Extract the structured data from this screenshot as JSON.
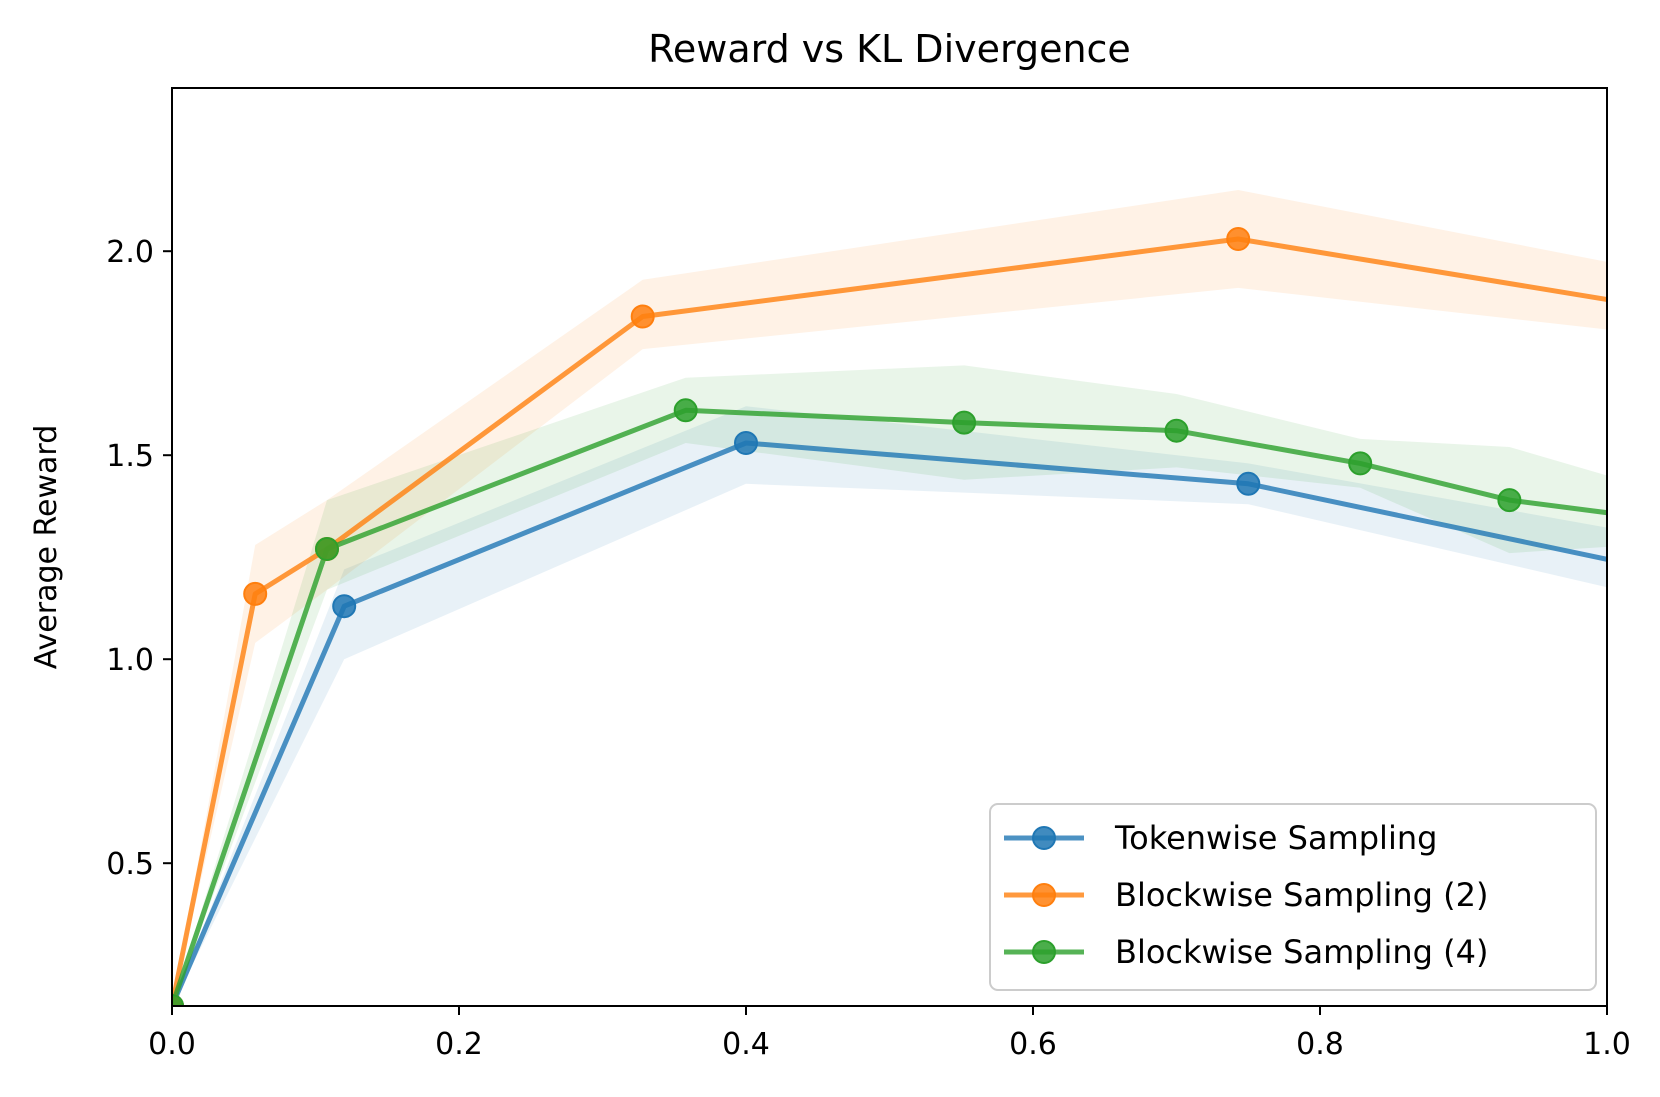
{
  "chart_data": {
    "type": "line",
    "title": "Reward vs KL Divergence",
    "xlabel": "",
    "ylabel": "Average Reward",
    "xlim": [
      0.0,
      1.0
    ],
    "ylim": [
      0.15,
      2.4
    ],
    "xticks": [
      0.0,
      0.2,
      0.4,
      0.6,
      0.8,
      1.0
    ],
    "xtick_labels": [
      "0.0",
      "0.2",
      "0.4",
      "0.6",
      "0.8",
      "1.0"
    ],
    "yticks": [
      0.5,
      1.0,
      1.5,
      2.0
    ],
    "ytick_labels": [
      "0.5",
      "1.0",
      "1.5",
      "2.0"
    ],
    "grid": false,
    "legend_position": "lower-right",
    "series": [
      {
        "name": "Tokenwise Sampling",
        "color": "#1f77b4",
        "marker": "circle",
        "x": [
          0.0,
          0.12,
          0.4,
          0.75,
          1.02
        ],
        "y": [
          0.15,
          1.13,
          1.53,
          1.43,
          1.23
        ],
        "y_low": [
          0.15,
          1.0,
          1.43,
          1.38,
          1.16
        ],
        "y_high": [
          0.15,
          1.22,
          1.62,
          1.48,
          1.31
        ]
      },
      {
        "name": "Blockwise Sampling (2)",
        "color": "#ff7f0e",
        "marker": "circle",
        "x": [
          0.0,
          0.058,
          0.108,
          0.328,
          0.743,
          1.02
        ],
        "y": [
          0.15,
          1.16,
          1.27,
          1.84,
          2.03,
          1.87
        ],
        "y_low": [
          0.15,
          1.04,
          1.17,
          1.76,
          1.91,
          1.8
        ],
        "y_high": [
          0.15,
          1.28,
          1.39,
          1.93,
          2.15,
          1.96
        ]
      },
      {
        "name": "Blockwise Sampling (4)",
        "color": "#2ca02c",
        "marker": "circle",
        "x": [
          0.0,
          0.108,
          0.358,
          0.552,
          0.7,
          0.828,
          0.932,
          1.02
        ],
        "y": [
          0.15,
          1.27,
          1.61,
          1.58,
          1.56,
          1.48,
          1.39,
          1.35
        ],
        "y_low": [
          0.15,
          1.17,
          1.53,
          1.44,
          1.47,
          1.42,
          1.26,
          1.28
        ],
        "y_high": [
          0.15,
          1.39,
          1.69,
          1.72,
          1.65,
          1.54,
          1.52,
          1.43
        ]
      }
    ]
  }
}
